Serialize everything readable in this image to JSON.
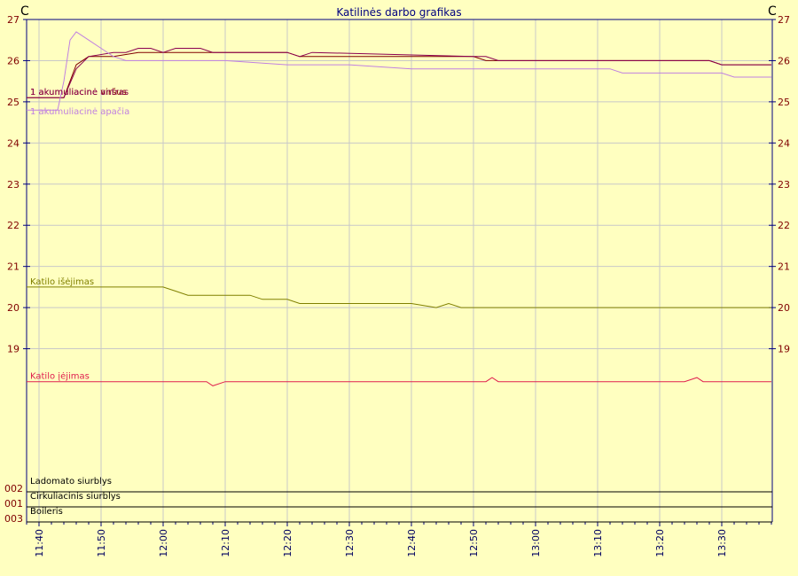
{
  "chart_data": {
    "type": "line",
    "title": "Katilinės darbo grafikas",
    "ylabel_left": "C",
    "ylabel_right": "C",
    "ylim": [
      18,
      27
    ],
    "y_ticks": [
      19,
      20,
      21,
      22,
      23,
      24,
      25,
      26,
      27
    ],
    "x_ticks": [
      "11:40",
      "11:50",
      "12:00",
      "12:10",
      "12:20",
      "12:30",
      "12:40",
      "12:50",
      "13:00",
      "13:10",
      "13:20",
      "13:30"
    ],
    "grid": true,
    "series": [
      {
        "name": "1 akumuliacinė viršus",
        "color": "#800000",
        "x": [
          "11:38",
          "11:44",
          "11:46",
          "11:48",
          "11:50",
          "11:52",
          "11:56",
          "11:58",
          "12:00",
          "12:02",
          "12:04",
          "12:06",
          "12:08",
          "12:20",
          "12:22",
          "12:24",
          "12:26",
          "12:50",
          "12:52",
          "12:54",
          "13:00",
          "13:10",
          "13:12",
          "13:14",
          "13:26",
          "13:28",
          "13:30",
          "13:32",
          "13:34",
          "13:36",
          "13:38"
        ],
        "y": [
          25.1,
          25.1,
          25.9,
          26.1,
          26.1,
          26.1,
          26.2,
          26.2,
          26.2,
          26.2,
          26.2,
          26.2,
          26.2,
          26.2,
          26.1,
          26.1,
          26.1,
          26.1,
          26.0,
          26.0,
          26.0,
          26.0,
          26.0,
          26.0,
          26.0,
          26.0,
          25.9,
          25.9,
          25.9,
          25.9,
          25.9
        ]
      },
      {
        "name": "1 akumuliacinė antras",
        "color": "#8B0050",
        "x": [
          "11:38",
          "11:44",
          "11:46",
          "11:48",
          "11:52",
          "11:54",
          "11:56",
          "11:58",
          "12:00",
          "12:02",
          "12:04",
          "12:06",
          "12:08",
          "12:20",
          "12:22",
          "12:24",
          "12:50",
          "12:52",
          "12:54",
          "13:00",
          "13:12",
          "13:14",
          "13:26",
          "13:28",
          "13:30",
          "13:32",
          "13:34",
          "13:36",
          "13:38"
        ],
        "y": [
          25.1,
          25.1,
          25.8,
          26.1,
          26.2,
          26.2,
          26.3,
          26.3,
          26.2,
          26.3,
          26.3,
          26.3,
          26.2,
          26.2,
          26.1,
          26.2,
          26.1,
          26.1,
          26.0,
          26.0,
          26.0,
          26.0,
          26.0,
          26.0,
          25.9,
          25.9,
          25.9,
          25.9,
          25.9
        ]
      },
      {
        "name": "1 akumuliacinė apačia",
        "color": "#C080E0",
        "x": [
          "11:38",
          "11:43",
          "11:44",
          "11:45",
          "11:46",
          "11:48",
          "11:50",
          "11:52",
          "11:54",
          "11:56",
          "12:00",
          "12:10",
          "12:20",
          "12:30",
          "12:40",
          "12:50",
          "13:00",
          "13:10",
          "13:12",
          "13:14",
          "13:20",
          "13:26",
          "13:28",
          "13:30",
          "13:32",
          "13:38"
        ],
        "y": [
          24.8,
          24.8,
          25.5,
          26.5,
          26.7,
          26.5,
          26.3,
          26.1,
          26.0,
          26.0,
          26.0,
          26.0,
          25.9,
          25.9,
          25.8,
          25.8,
          25.8,
          25.8,
          25.8,
          25.7,
          25.7,
          25.7,
          25.7,
          25.7,
          25.6,
          25.6
        ]
      },
      {
        "name": "Katilo išėjimas",
        "color": "#808000",
        "x": [
          "11:38",
          "11:50",
          "12:00",
          "12:02",
          "12:04",
          "12:10",
          "12:14",
          "12:16",
          "12:18",
          "12:20",
          "12:22",
          "12:30",
          "12:40",
          "12:44",
          "12:46",
          "12:48",
          "12:52",
          "12:54",
          "13:00",
          "13:10",
          "13:20",
          "13:30",
          "13:38"
        ],
        "y": [
          20.5,
          20.5,
          20.5,
          20.4,
          20.3,
          20.3,
          20.3,
          20.2,
          20.2,
          20.2,
          20.1,
          20.1,
          20.1,
          20.0,
          20.1,
          20.0,
          20.0,
          20.0,
          20.0,
          20.0,
          20.0,
          20.0,
          20.0
        ]
      },
      {
        "name": "Katilo įėjimas",
        "color": "#E0204F",
        "x": [
          "11:38",
          "12:06",
          "12:07",
          "12:08",
          "12:10",
          "12:50",
          "12:52",
          "12:53",
          "12:54",
          "13:00",
          "13:24",
          "13:26",
          "13:27",
          "13:38"
        ],
        "y": [
          18.2,
          18.2,
          18.2,
          18.1,
          18.2,
          18.2,
          18.2,
          18.3,
          18.2,
          18.2,
          18.2,
          18.3,
          18.2,
          18.2
        ]
      }
    ],
    "digital_ticks": [
      "002",
      "001",
      "003"
    ],
    "digital_series": [
      {
        "name": "Ladomato siurblys"
      },
      {
        "name": "Cirkuliacinis siurblys"
      },
      {
        "name": "Boileris"
      }
    ]
  }
}
